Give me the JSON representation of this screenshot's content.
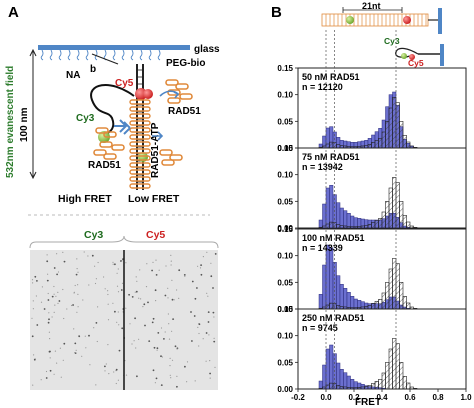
{
  "panel_a": {
    "label": "A",
    "glass": "glass",
    "peg": "PEG-bio",
    "na": "NA",
    "b": "b",
    "cy5": "Cy5",
    "cy3": "Cy3",
    "rad51_right": "RAD51",
    "rad51_left": "RAD51",
    "rad51_atp": "RAD51-ATP",
    "field_a": "100 nm",
    "field_b": "532nm evanescent field",
    "high": "High FRET",
    "low": "Low FRET",
    "img_cy3": "Cy3",
    "img_cy5": "Cy5",
    "colors": {
      "cy3": "#1e6b1e",
      "cy5": "#cc2222",
      "glass": "#4f86c6",
      "rad51": "#e08a3c",
      "field": "#2e7d2e"
    }
  },
  "panel_b": {
    "label": "B",
    "nt": "21nt",
    "cy3": "Cy3",
    "cy5": "Cy5",
    "xlabel": "FRET",
    "x_ticks": [
      "-0.2",
      "0.0",
      "0.2",
      "0.4",
      "0.6",
      "0.8",
      "1.0"
    ],
    "y_ticks": [
      "0.00",
      "0.05",
      "0.10",
      "0.15"
    ],
    "colors": {
      "fill": "#6b6fcf",
      "edge": "#2a2a7a"
    }
  },
  "chart_data": {
    "type": "bar",
    "xlabel": "FRET",
    "xlim": [
      -0.2,
      1.0
    ],
    "ylim": [
      0,
      0.15
    ],
    "bin_width": 0.025,
    "panels": [
      {
        "conc": "50 nM RAD51",
        "n": "n = 12120",
        "ref": [
          [
            -0.05,
            0.0
          ],
          [
            0.0,
            0.005
          ],
          [
            0.025,
            0.01
          ],
          [
            0.05,
            0.012
          ],
          [
            0.1,
            0.005
          ],
          [
            0.2,
            0.002
          ],
          [
            0.3,
            0.005
          ],
          [
            0.4,
            0.02
          ],
          [
            0.45,
            0.06
          ],
          [
            0.475,
            0.09
          ],
          [
            0.5,
            0.1
          ],
          [
            0.525,
            0.07
          ],
          [
            0.55,
            0.03
          ],
          [
            0.6,
            0.005
          ],
          [
            0.65,
            0.0
          ]
        ],
        "sample": [
          [
            -0.05,
            0.0
          ],
          [
            0.0,
            0.03
          ],
          [
            0.025,
            0.045
          ],
          [
            0.05,
            0.035
          ],
          [
            0.1,
            0.015
          ],
          [
            0.2,
            0.01
          ],
          [
            0.3,
            0.015
          ],
          [
            0.4,
            0.04
          ],
          [
            0.45,
            0.09
          ],
          [
            0.475,
            0.11
          ],
          [
            0.5,
            0.1
          ],
          [
            0.525,
            0.06
          ],
          [
            0.55,
            0.02
          ],
          [
            0.6,
            0.005
          ],
          [
            0.65,
            0.0
          ]
        ]
      },
      {
        "conc": "75 nM RAD51",
        "n": "n = 13942",
        "ref": [
          [
            -0.05,
            0.0
          ],
          [
            0.0,
            0.005
          ],
          [
            0.025,
            0.01
          ],
          [
            0.05,
            0.012
          ],
          [
            0.1,
            0.005
          ],
          [
            0.2,
            0.002
          ],
          [
            0.3,
            0.005
          ],
          [
            0.4,
            0.02
          ],
          [
            0.45,
            0.06
          ],
          [
            0.475,
            0.09
          ],
          [
            0.5,
            0.1
          ],
          [
            0.525,
            0.07
          ],
          [
            0.55,
            0.03
          ],
          [
            0.6,
            0.005
          ],
          [
            0.65,
            0.0
          ]
        ],
        "sample": [
          [
            -0.05,
            0.0
          ],
          [
            0.0,
            0.06
          ],
          [
            0.025,
            0.09
          ],
          [
            0.05,
            0.07
          ],
          [
            0.1,
            0.04
          ],
          [
            0.2,
            0.02
          ],
          [
            0.3,
            0.015
          ],
          [
            0.4,
            0.015
          ],
          [
            0.45,
            0.025
          ],
          [
            0.475,
            0.03
          ],
          [
            0.5,
            0.025
          ],
          [
            0.525,
            0.015
          ],
          [
            0.55,
            0.005
          ],
          [
            0.6,
            0.0
          ],
          [
            0.65,
            0.0
          ]
        ]
      },
      {
        "conc": "100 nM RAD51",
        "n": "n = 14339",
        "ref": [
          [
            -0.05,
            0.0
          ],
          [
            0.0,
            0.005
          ],
          [
            0.025,
            0.01
          ],
          [
            0.05,
            0.012
          ],
          [
            0.1,
            0.005
          ],
          [
            0.2,
            0.002
          ],
          [
            0.3,
            0.005
          ],
          [
            0.4,
            0.02
          ],
          [
            0.45,
            0.06
          ],
          [
            0.475,
            0.09
          ],
          [
            0.5,
            0.1
          ],
          [
            0.525,
            0.07
          ],
          [
            0.55,
            0.03
          ],
          [
            0.6,
            0.005
          ],
          [
            0.65,
            0.0
          ]
        ],
        "sample": [
          [
            -0.05,
            0.0
          ],
          [
            0.0,
            0.11
          ],
          [
            0.025,
            0.13
          ],
          [
            0.05,
            0.1
          ],
          [
            0.1,
            0.05
          ],
          [
            0.2,
            0.02
          ],
          [
            0.3,
            0.01
          ],
          [
            0.4,
            0.01
          ],
          [
            0.45,
            0.02
          ],
          [
            0.475,
            0.025
          ],
          [
            0.5,
            0.02
          ],
          [
            0.525,
            0.01
          ],
          [
            0.55,
            0.005
          ],
          [
            0.6,
            0.0
          ],
          [
            0.65,
            0.0
          ]
        ]
      },
      {
        "conc": "250 nM RAD51",
        "n": "n = 9745",
        "ref": [
          [
            -0.05,
            0.0
          ],
          [
            0.0,
            0.005
          ],
          [
            0.025,
            0.01
          ],
          [
            0.05,
            0.012
          ],
          [
            0.1,
            0.005
          ],
          [
            0.2,
            0.002
          ],
          [
            0.3,
            0.005
          ],
          [
            0.4,
            0.02
          ],
          [
            0.45,
            0.06
          ],
          [
            0.475,
            0.09
          ],
          [
            0.5,
            0.1
          ],
          [
            0.525,
            0.07
          ],
          [
            0.55,
            0.03
          ],
          [
            0.6,
            0.005
          ],
          [
            0.65,
            0.0
          ]
        ],
        "sample": [
          [
            -0.05,
            0.0
          ],
          [
            0.0,
            0.06
          ],
          [
            0.025,
            0.09
          ],
          [
            0.05,
            0.075
          ],
          [
            0.1,
            0.04
          ],
          [
            0.2,
            0.015
          ],
          [
            0.3,
            0.005
          ],
          [
            0.4,
            0.002
          ],
          [
            0.45,
            0.0
          ],
          [
            0.475,
            0.0
          ],
          [
            0.5,
            0.0
          ],
          [
            0.525,
            0.0
          ],
          [
            0.55,
            0.0
          ],
          [
            0.6,
            0.0
          ],
          [
            0.65,
            0.0
          ]
        ]
      }
    ]
  }
}
